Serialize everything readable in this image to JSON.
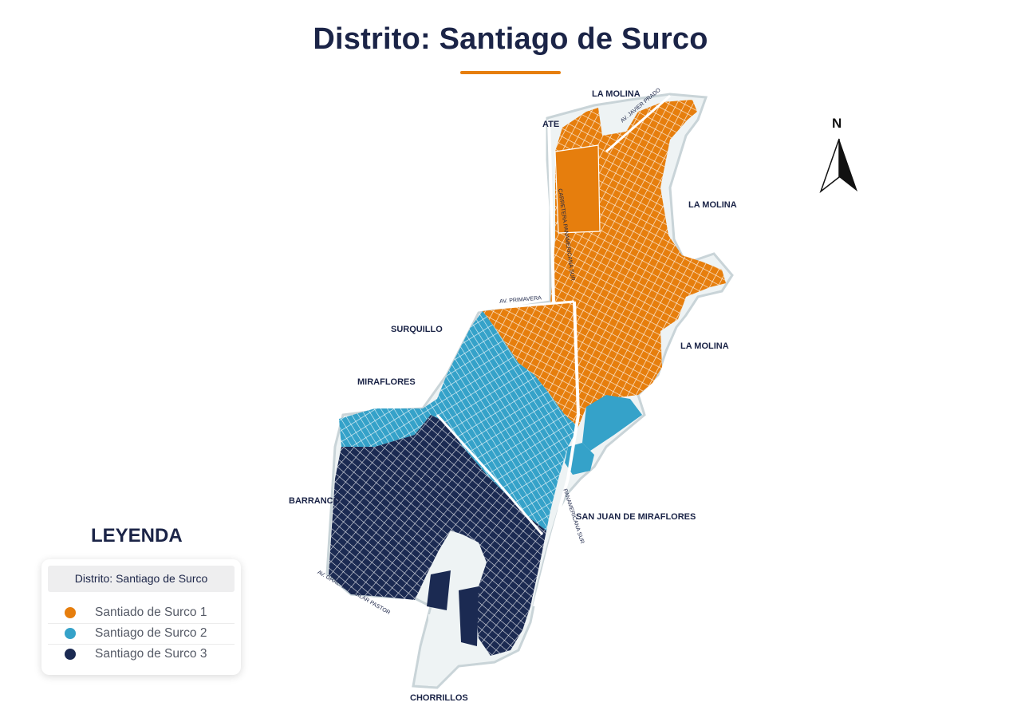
{
  "title": "Distrito: Santiago de Surco",
  "colors": {
    "accent": "#e67e0d",
    "zone1": "#e67e0d",
    "zone2": "#35a2c9",
    "zone3": "#1b2a52",
    "text": "#1b2447"
  },
  "neighbors": {
    "la_molina_top": "LA MOLINA",
    "ate": "ATE",
    "la_molina_mid": "LA MOLINA",
    "la_molina_low": "LA MOLINA",
    "surquillo": "SURQUILLO",
    "miraflores": "MIRAFLORES",
    "barranco": "BARRANCO",
    "sjm": "SAN JUAN DE MIRAFLORES",
    "chorrillos": "CHORRILLOS"
  },
  "roads": {
    "javier_prado": "AV. JAVIER PRADO",
    "panamericana_norte": "CARRETERA PANAMERICANA SUR",
    "primavera": "AV. PRIMAVERA",
    "panamericana_sur": "PANAMERICANA SUR",
    "aguilar_pastor": "AV. GRAL. E. AGUILAR PASTOR"
  },
  "compass": {
    "letter": "N",
    "icon": "north-arrow-icon"
  },
  "legend": {
    "title": "LEYENDA",
    "header": "Distrito: Santiago de Surco",
    "items": [
      {
        "label": "Santiado de Surco 1",
        "color": "#e67e0d"
      },
      {
        "label": "Santiago de Surco 2",
        "color": "#35a2c9"
      },
      {
        "label": "Santiago de Surco 3",
        "color": "#1b2a52"
      }
    ]
  }
}
